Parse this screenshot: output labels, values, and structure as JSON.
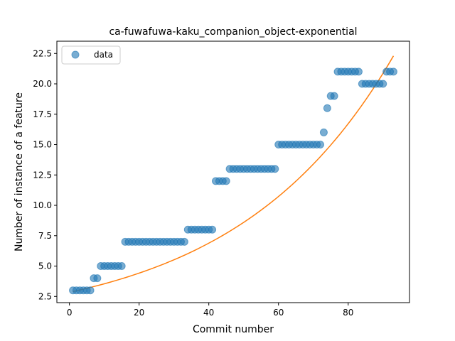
{
  "chart_data": {
    "type": "scatter",
    "title": "ca-fuwafuwa-kaku_companion_object-exponential",
    "xlabel": "Commit number",
    "ylabel": "Number of instance of a feature",
    "xlim": [
      -3.6,
      97.6
    ],
    "ylim": [
      1.99,
      23.51
    ],
    "xticks": [
      0,
      20,
      40,
      60,
      80
    ],
    "xtick_labels": [
      "0",
      "20",
      "40",
      "60",
      "80"
    ],
    "yticks": [
      2.5,
      5.0,
      7.5,
      10.0,
      12.5,
      15.0,
      17.5,
      20.0,
      22.5
    ],
    "ytick_labels": [
      "2.5",
      "5.0",
      "7.5",
      "10.0",
      "12.5",
      "15.0",
      "17.5",
      "20.0",
      "22.5"
    ],
    "legend": {
      "position": "top-left",
      "entries": [
        "data"
      ]
    },
    "grid": false,
    "colors": {
      "data": "#1f77b4",
      "fit": "#ff7f0e"
    },
    "series": [
      {
        "name": "data",
        "kind": "scatter",
        "x": [
          1,
          2,
          3,
          4,
          5,
          6,
          7,
          8,
          9,
          10,
          11,
          12,
          13,
          14,
          15,
          16,
          17,
          18,
          19,
          20,
          21,
          22,
          23,
          24,
          25,
          26,
          27,
          28,
          29,
          30,
          31,
          32,
          33,
          34,
          35,
          36,
          37,
          38,
          39,
          40,
          41,
          42,
          43,
          44,
          45,
          46,
          47,
          48,
          49,
          50,
          51,
          52,
          53,
          54,
          55,
          56,
          57,
          58,
          59,
          60,
          61,
          62,
          63,
          64,
          65,
          66,
          67,
          68,
          69,
          70,
          71,
          72,
          73,
          74,
          75,
          76,
          77,
          78,
          79,
          80,
          81,
          82,
          83,
          84,
          85,
          86,
          87,
          88,
          89,
          90,
          91,
          92,
          93
        ],
        "y": [
          3,
          3,
          3,
          3,
          3,
          3,
          4,
          4,
          5,
          5,
          5,
          5,
          5,
          5,
          5,
          7,
          7,
          7,
          7,
          7,
          7,
          7,
          7,
          7,
          7,
          7,
          7,
          7,
          7,
          7,
          7,
          7,
          7,
          8,
          8,
          8,
          8,
          8,
          8,
          8,
          8,
          12,
          12,
          12,
          12,
          13,
          13,
          13,
          13,
          13,
          13,
          13,
          13,
          13,
          13,
          13,
          13,
          13,
          13,
          15,
          15,
          15,
          15,
          15,
          15,
          15,
          15,
          15,
          15,
          15,
          15,
          15,
          16,
          18,
          19,
          19,
          21,
          21,
          21,
          21,
          21,
          21,
          21,
          20,
          20,
          20,
          20,
          20,
          20,
          20,
          21,
          21,
          21
        ]
      },
      {
        "kind": "line",
        "x": [
          1,
          93
        ],
        "y": [
          2.9,
          22.3
        ],
        "curve": "exponential"
      }
    ]
  }
}
